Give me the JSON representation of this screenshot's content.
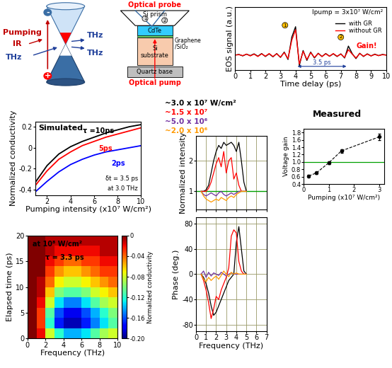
{
  "diagrams": {
    "band_diagram": {
      "pumping": "Pumping",
      "ir": "IR",
      "thz_in": "THz",
      "thz_out_1": "THz",
      "thz_out_2": "THz",
      "electron": "-",
      "hole": "+"
    },
    "device": {
      "optical_probe": "Optical probe",
      "si_prism": "Si prism",
      "cdte": "CdTe",
      "graphene": [
        "Graphene",
        "/SiO₂"
      ],
      "si_substrate": [
        "Si",
        "substrate"
      ],
      "quartz_base": "Quartz base",
      "optical_pump": "Optical pump",
      "markers": [
        "1",
        "2"
      ]
    }
  },
  "chart_data": [
    {
      "type": "line",
      "xlabel": "Time delay (ps)",
      "ylabel": "EOS signal (a.u.)",
      "xlim": [
        0,
        10
      ],
      "xticks": [
        0,
        1,
        2,
        3,
        4,
        5,
        6,
        7,
        8,
        9,
        10
      ],
      "ylim": [
        -0.5,
        1.6
      ],
      "tick_labels": "x",
      "legend": "upper right",
      "annotations": {
        "intensity": "Ipump = 3x10⁷ W/cm²",
        "gain": "Gain!",
        "delay": "3.5 ps",
        "markers": [
          "1",
          "2"
        ]
      },
      "x": [
        0,
        0.25,
        0.5,
        0.75,
        1,
        1.25,
        1.5,
        1.75,
        2,
        2.25,
        2.5,
        2.75,
        3,
        3.25,
        3.5,
        3.75,
        4,
        4.25,
        4.5,
        4.75,
        5,
        5.25,
        5.5,
        5.75,
        6,
        6.25,
        6.5,
        6.75,
        7,
        7.25,
        7.5,
        7.75,
        8,
        8.25,
        8.5,
        8.75,
        9,
        9.25,
        9.5,
        9.75,
        10
      ],
      "series": [
        {
          "name": "with GR",
          "color": "#000000",
          "values": [
            0,
            0.02,
            -0.03,
            0.03,
            -0.02,
            0.04,
            -0.04,
            0.05,
            -0.05,
            0.04,
            -0.06,
            0.05,
            -0.08,
            0.1,
            -0.15,
            0.6,
            0.95,
            -0.35,
            0.15,
            -0.18,
            0.1,
            -0.1,
            0.06,
            -0.05,
            0.05,
            -0.04,
            0.04,
            -0.05,
            0.04,
            -0.1,
            0.3,
            0.05,
            -0.12,
            0.06,
            -0.05,
            0.04,
            -0.03,
            0.03,
            -0.02,
            0.02,
            0
          ]
        },
        {
          "name": "without GR",
          "color": "#ff0000",
          "values": [
            0,
            0.01,
            -0.02,
            0.03,
            -0.03,
            0.03,
            -0.05,
            0.04,
            -0.04,
            0.05,
            -0.05,
            0.04,
            -0.07,
            0.08,
            -0.12,
            0.5,
            0.85,
            -0.3,
            0.12,
            -0.15,
            0.08,
            -0.08,
            0.05,
            -0.05,
            0.04,
            -0.04,
            0.05,
            -0.04,
            0.03,
            -0.08,
            0.18,
            0.03,
            -0.1,
            0.05,
            -0.04,
            0.03,
            -0.03,
            0.02,
            -0.02,
            0.01,
            0
          ]
        }
      ]
    },
    {
      "type": "line",
      "xlabel": "Pumping intensity (x10⁷ W/cm²)",
      "ylabel": "Normalized conductivity",
      "xlim": [
        1,
        10
      ],
      "xticks": [
        2,
        4,
        6,
        8,
        10
      ],
      "ylim": [
        -0.45,
        0.25
      ],
      "yticks": [
        -0.4,
        -0.2,
        0,
        0.2
      ],
      "annotations": {
        "title": "Simulated",
        "condition_1": "δt = 3.5 ps",
        "condition_2": "at 3.0 THz"
      },
      "x": [
        1,
        2,
        3,
        4,
        5,
        6,
        7,
        8,
        9,
        10
      ],
      "series": [
        {
          "name": "τ =10ps",
          "color": "#000000",
          "values": [
            -0.33,
            -0.17,
            -0.06,
            0.01,
            0.06,
            0.1,
            0.14,
            0.17,
            0.2,
            0.22
          ]
        },
        {
          "name": "5ps",
          "color": "#ff0000",
          "values": [
            -0.36,
            -0.22,
            -0.11,
            -0.04,
            0.02,
            0.06,
            0.1,
            0.13,
            0.16,
            0.19
          ]
        },
        {
          "name": "2ps",
          "color": "#0000ff",
          "values": [
            -0.42,
            -0.32,
            -0.23,
            -0.16,
            -0.11,
            -0.07,
            -0.04,
            -0.02,
            0.0,
            0.02
          ]
        }
      ]
    },
    {
      "type": "heatmap",
      "xlabel": "Frequency (THz)",
      "ylabel": "Elapsed time (ps)",
      "xlim": [
        0,
        10
      ],
      "xticks": [
        0,
        2,
        4,
        6,
        8,
        10
      ],
      "ylim": [
        0,
        20
      ],
      "yticks": [
        0,
        5,
        10,
        15,
        20
      ],
      "annotations": {
        "intensity": "at 10⁸ W/cm²",
        "tau": "τ = 3.3 ps"
      },
      "x_edges": [
        0,
        1,
        2,
        3,
        4,
        5,
        6,
        7,
        8,
        9,
        10
      ],
      "y_edges": [
        0,
        2,
        4,
        6,
        8,
        10,
        12,
        14,
        16,
        18,
        20
      ],
      "cells": [
        [
          0,
          -0.02,
          -0.08,
          -0.12,
          -0.14,
          -0.14,
          -0.13,
          -0.11,
          -0.09,
          -0.08
        ],
        [
          0,
          -0.03,
          -0.12,
          -0.17,
          -0.19,
          -0.19,
          -0.17,
          -0.15,
          -0.13,
          -0.11
        ],
        [
          0,
          -0.03,
          -0.11,
          -0.16,
          -0.18,
          -0.18,
          -0.16,
          -0.14,
          -0.12,
          -0.1
        ],
        [
          0,
          -0.02,
          -0.08,
          -0.13,
          -0.15,
          -0.15,
          -0.13,
          -0.11,
          -0.09,
          -0.08
        ],
        [
          0,
          -0.01,
          -0.06,
          -0.1,
          -0.11,
          -0.11,
          -0.1,
          -0.08,
          -0.07,
          -0.06
        ],
        [
          0,
          -0.01,
          -0.04,
          -0.07,
          -0.08,
          -0.08,
          -0.07,
          -0.06,
          -0.05,
          -0.04
        ],
        [
          0,
          0,
          -0.03,
          -0.05,
          -0.06,
          -0.06,
          -0.05,
          -0.04,
          -0.03,
          -0.03
        ],
        [
          0,
          0,
          -0.02,
          -0.03,
          -0.04,
          -0.04,
          -0.03,
          -0.03,
          -0.02,
          -0.02
        ],
        [
          0,
          0,
          -0.01,
          -0.02,
          -0.02,
          -0.02,
          -0.02,
          -0.02,
          -0.01,
          -0.01
        ],
        [
          0,
          0,
          -0.01,
          -0.01,
          -0.01,
          -0.01,
          -0.01,
          -0.01,
          -0.01,
          -0.01
        ]
      ],
      "colorbar": {
        "label": "Normalized conductivity",
        "range": [
          -0.2,
          0.0
        ],
        "ticks": [
          0,
          -0.04,
          -0.08,
          -0.12,
          -0.16,
          {
            "value": -0.2,
            "label": "-0.20"
          }
        ]
      }
    },
    {
      "type": "line",
      "title": "Measured",
      "ylabel": "Normalized intensity",
      "xlim": [
        0,
        7
      ],
      "xticks": [
        0,
        1,
        2,
        3,
        4,
        5,
        6,
        7
      ],
      "ylim": [
        0.4,
        2.8
      ],
      "yticks": [
        1,
        2
      ],
      "tick_labels": "y",
      "grid": true,
      "hline": 1,
      "x": [
        0.5,
        0.75,
        1,
        1.25,
        1.5,
        1.75,
        2,
        2.25,
        2.5,
        2.75,
        3,
        3.25,
        3.5,
        3.75,
        4,
        4.25,
        4.5,
        4.75,
        5
      ],
      "series": [
        {
          "name": "~3.0 x 10⁷ W/cm²",
          "color": "#000000",
          "values": [
            1.0,
            1.0,
            1.05,
            1.2,
            1.6,
            2.0,
            2.3,
            2.5,
            2.4,
            2.6,
            2.5,
            2.55,
            2.6,
            2.5,
            2.3,
            2.6,
            2.0,
            1.3,
            1.0
          ]
        },
        {
          "name": "~1.5 x 10⁷",
          "color": "#ff0000",
          "values": [
            1.0,
            1.0,
            1.0,
            1.1,
            1.3,
            1.6,
            1.9,
            2.1,
            1.8,
            2.3,
            1.6,
            2.0,
            2.1,
            1.4,
            1.6,
            1.2,
            1.0,
            1.0,
            1.0
          ]
        },
        {
          "name": "~5.0 x 10⁶",
          "color": "#7030a0",
          "values": [
            1.0,
            0.9,
            0.85,
            0.9,
            0.95,
            0.9,
            0.85,
            0.95,
            1.0,
            0.9,
            0.85,
            0.9,
            0.95,
            0.9,
            0.95,
            1.0,
            1.0,
            1.0,
            1.0
          ]
        },
        {
          "name": "~2.0 x 10⁶",
          "color": "#ff9900",
          "values": [
            1.0,
            0.85,
            0.75,
            0.7,
            0.65,
            0.7,
            0.75,
            0.7,
            0.8,
            0.75,
            0.7,
            0.8,
            0.85,
            0.8,
            0.9,
            0.95,
            1.0,
            1.0,
            1.0
          ]
        }
      ]
    },
    {
      "type": "line",
      "xlabel": "Pumping (x10⁷ W/cm²)",
      "ylabel": "Voltage gain",
      "marker": "o",
      "line_style": "dashed",
      "xlim": [
        0,
        3.2
      ],
      "xticks": [
        0,
        1,
        2,
        3
      ],
      "ylim": [
        0.4,
        1.9
      ],
      "yticks": [
        0.4,
        0.6,
        0.8,
        1.0,
        1.2,
        1.4,
        1.6,
        1.8
      ],
      "hline": 1.0,
      "x": [
        0.2,
        0.5,
        1.0,
        1.5,
        3.0
      ],
      "series": [
        {
          "color": "#000000",
          "values": [
            0.62,
            0.7,
            0.98,
            1.3,
            1.68
          ],
          "errors": [
            0.03,
            0.03,
            0.04,
            0.05,
            0.08
          ]
        }
      ]
    },
    {
      "type": "line",
      "xlabel": "Frequency (THz)",
      "ylabel": "Phase (deg.)",
      "xlim": [
        0,
        7
      ],
      "xticks": [
        0,
        1,
        2,
        3,
        4,
        5,
        6,
        7
      ],
      "ylim": [
        -90,
        90
      ],
      "yticks": [
        -80,
        -40,
        0,
        40,
        80
      ],
      "grid": true,
      "x": [
        0.5,
        0.75,
        1,
        1.25,
        1.5,
        1.75,
        2,
        2.25,
        2.5,
        2.75,
        3,
        3.25,
        3.5,
        3.75,
        4,
        4.25,
        4.5,
        4.75,
        5
      ],
      "series": [
        {
          "color": "#000000",
          "values": [
            0,
            -5,
            -15,
            -30,
            -50,
            -65,
            -60,
            -50,
            -40,
            -30,
            -20,
            -10,
            -5,
            0,
            50,
            75,
            40,
            5,
            0
          ]
        },
        {
          "color": "#ff0000",
          "values": [
            0,
            -10,
            -25,
            -45,
            -70,
            -55,
            -35,
            -40,
            -25,
            -15,
            -5,
            10,
            60,
            70,
            65,
            20,
            5,
            0,
            0
          ]
        },
        {
          "color": "#7030a0",
          "values": [
            0,
            5,
            -5,
            3,
            -3,
            2,
            0,
            -2,
            3,
            0,
            -3,
            0,
            2,
            0,
            0,
            0,
            0,
            0,
            0
          ]
        },
        {
          "color": "#ff9900",
          "values": [
            0,
            -8,
            -12,
            -5,
            -10,
            -6,
            -3,
            -8,
            -2,
            5,
            0,
            -4,
            3,
            0,
            2,
            0,
            0,
            0,
            0
          ]
        }
      ]
    }
  ]
}
